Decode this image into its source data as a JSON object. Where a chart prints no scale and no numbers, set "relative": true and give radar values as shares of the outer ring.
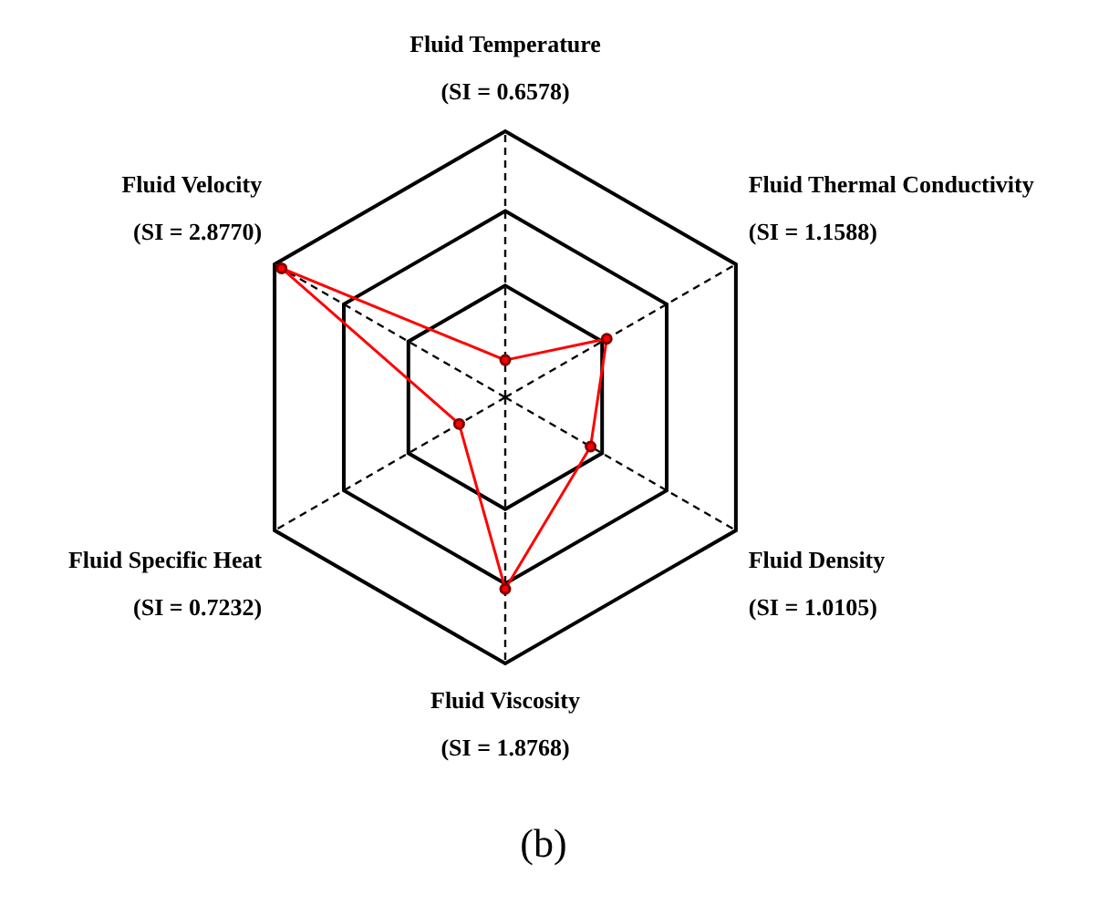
{
  "chart_data": {
    "type": "radar",
    "relative": true,
    "categories": [
      "Fluid Temperature\n(SI = 0.6578)",
      "Fluid Thermal Conductivity\n(SI = 1.1588)",
      "Fluid Density\n(SI = 1.0105)",
      "Fluid Viscosity\n(SI = 1.8768)",
      "Fluid Specific Heat\n(SI = 0.7232)",
      "Fluid Velocity\n(SI = 2.8770)"
    ],
    "series": [
      {
        "color": "#ff0000",
        "values": [
          0.14,
          0.44,
          0.37,
          0.72,
          0.2,
          0.97
        ]
      }
    ],
    "grid": true,
    "legend": false,
    "marker": "circle",
    "line_style": "solid",
    "annotations": [
      "(b)"
    ]
  }
}
